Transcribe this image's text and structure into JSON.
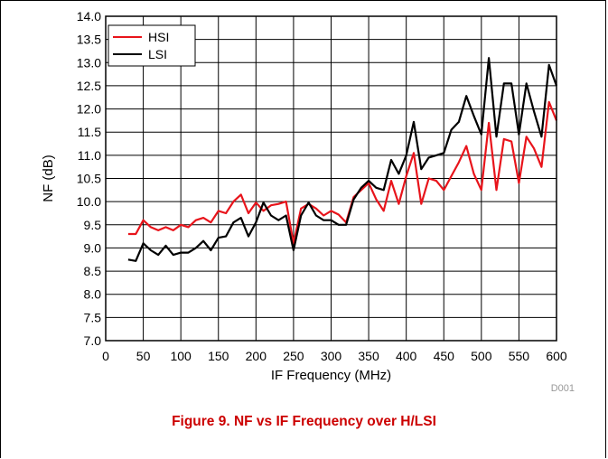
{
  "caption": "Figure 9. NF vs IF Frequency over H/LSI",
  "chart_data": {
    "type": "line",
    "title": "",
    "xlabel": "IF Frequency (MHz)",
    "ylabel": "NF (dB)",
    "figure_code": "D001",
    "xlim": [
      0,
      600
    ],
    "ylim": [
      7.0,
      14.0
    ],
    "xticks": [
      0,
      50,
      100,
      150,
      200,
      250,
      300,
      350,
      400,
      450,
      500,
      550,
      600
    ],
    "yticks": [
      7.0,
      7.5,
      8.0,
      8.5,
      9.0,
      9.5,
      10.0,
      10.5,
      11.0,
      11.5,
      12.0,
      12.5,
      13.0,
      13.5,
      14.0
    ],
    "xtick_labels": [
      "0",
      "50",
      "100",
      "150",
      "200",
      "250",
      "300",
      "350",
      "400",
      "450",
      "500",
      "550",
      "600"
    ],
    "ytick_labels": [
      "7.0",
      "7.5",
      "8.0",
      "8.5",
      "9.0",
      "9.5",
      "10.0",
      "10.5",
      "11.0",
      "11.5",
      "12.0",
      "12.5",
      "13.0",
      "13.5",
      "14.0"
    ],
    "grid": true,
    "legend_position": "top-left",
    "series": [
      {
        "name": "HSI",
        "color": "#e8141b",
        "x": [
          30,
          40,
          50,
          60,
          70,
          80,
          90,
          100,
          110,
          120,
          130,
          140,
          150,
          160,
          170,
          180,
          190,
          200,
          210,
          220,
          230,
          240,
          250,
          260,
          270,
          280,
          290,
          300,
          310,
          320,
          330,
          340,
          350,
          360,
          370,
          380,
          390,
          400,
          410,
          420,
          430,
          440,
          450,
          460,
          470,
          480,
          490,
          500,
          510,
          520,
          530,
          540,
          550,
          560,
          570,
          580,
          590,
          600
        ],
        "y": [
          9.3,
          9.3,
          9.6,
          9.45,
          9.38,
          9.45,
          9.38,
          9.5,
          9.45,
          9.6,
          9.65,
          9.55,
          9.8,
          9.75,
          10.0,
          10.15,
          9.75,
          9.98,
          9.8,
          9.92,
          9.95,
          10.0,
          9.1,
          9.85,
          9.95,
          9.85,
          9.7,
          9.8,
          9.72,
          9.55,
          10.1,
          10.25,
          10.4,
          10.05,
          9.8,
          10.45,
          9.95,
          10.55,
          11.05,
          9.95,
          10.5,
          10.45,
          10.25,
          10.55,
          10.85,
          11.2,
          10.6,
          10.25,
          11.7,
          10.25,
          11.35,
          11.3,
          10.4,
          11.4,
          11.15,
          10.75,
          12.15,
          11.75
        ]
      },
      {
        "name": "LSI",
        "color": "#000000",
        "x": [
          30,
          40,
          50,
          60,
          70,
          80,
          90,
          100,
          110,
          120,
          130,
          140,
          150,
          160,
          170,
          180,
          190,
          200,
          210,
          220,
          230,
          240,
          250,
          260,
          270,
          280,
          290,
          300,
          310,
          320,
          330,
          340,
          350,
          360,
          370,
          380,
          390,
          400,
          410,
          420,
          430,
          440,
          450,
          460,
          470,
          480,
          490,
          500,
          510,
          520,
          530,
          540,
          550,
          560,
          570,
          580,
          590,
          600
        ],
        "y": [
          8.75,
          8.72,
          9.1,
          8.95,
          8.85,
          9.05,
          8.85,
          8.9,
          8.9,
          9.0,
          9.15,
          8.95,
          9.22,
          9.25,
          9.55,
          9.65,
          9.25,
          9.55,
          9.98,
          9.7,
          9.6,
          9.7,
          8.95,
          9.7,
          9.98,
          9.7,
          9.6,
          9.6,
          9.5,
          9.5,
          10.05,
          10.3,
          10.45,
          10.3,
          10.25,
          10.9,
          10.6,
          11.0,
          11.72,
          10.7,
          10.95,
          11.0,
          11.05,
          11.55,
          11.72,
          12.28,
          11.85,
          11.45,
          13.1,
          11.4,
          12.55,
          12.55,
          11.45,
          12.55,
          11.95,
          11.4,
          12.95,
          12.5
        ]
      }
    ]
  }
}
